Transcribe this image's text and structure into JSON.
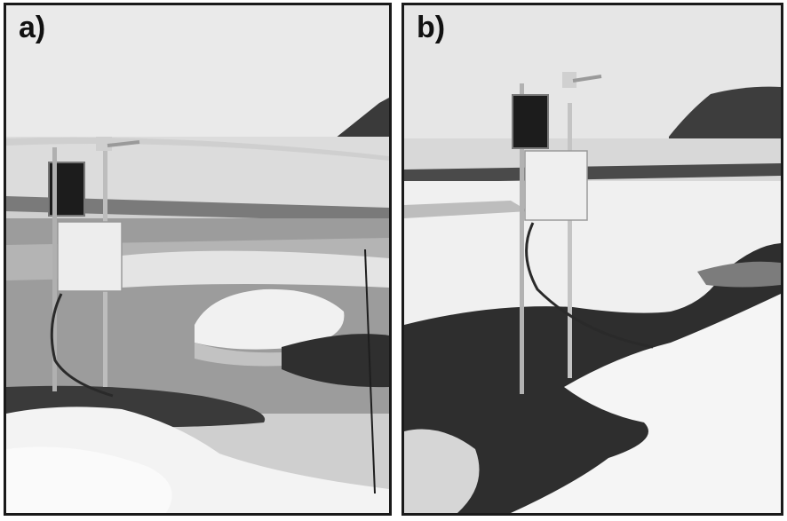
{
  "figure": {
    "panels": [
      {
        "label": "a)"
      },
      {
        "label": "b)"
      }
    ]
  },
  "colors": {
    "border": "#1a1a1a",
    "sky": "#e8e8e8",
    "snow": "#f4f4f4",
    "soil": "#2e2e2e",
    "water": "#9a9a9a",
    "rock": "#3a3a3a",
    "enclosure": "#ededed",
    "solar_panel": "#1c1c1c",
    "mast": "#bdbdbd"
  }
}
